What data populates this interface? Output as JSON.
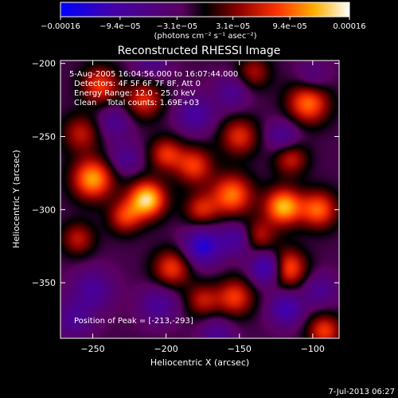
{
  "chart_data": {
    "type": "heatmap",
    "title": "Reconstructed RHESSI Image",
    "xlabel": "Heliocentric X (arcsec)",
    "ylabel": "Heliocentric Y (arcsec)",
    "xlim": [
      -272,
      -82
    ],
    "ylim": [
      -388,
      -198
    ],
    "xticks": [
      -250,
      -200,
      -150,
      -100
    ],
    "yticks": [
      -200,
      -250,
      -300,
      -350
    ],
    "colorbar": {
      "unit_label": "(photons cm⁻² s⁻¹ asec⁻²)",
      "range": [
        -0.00016,
        0.00016
      ],
      "tick_labels": [
        "-0.00016",
        "-9.4e-05",
        "-3.1e-05",
        "3.1e-05",
        "9.4e-05",
        "0.00016"
      ],
      "tick_values": [
        -0.00016,
        -9.4e-05,
        -3.1e-05,
        3.1e-05,
        9.4e-05,
        0.00016
      ]
    },
    "annotations": [
      "5-Aug-2005 16:04:56.000 to 16:07:44.000",
      "Detectors: 4F 5F 6F 7F 8F, Att 0",
      "Energy Range: 12.0 - 25.0 keV",
      "Clean    Total counts: 1.69E+03"
    ],
    "peak_label": "Position of Peak = [-213,-293]",
    "peak": [
      -213,
      -293
    ],
    "sources": [
      {
        "x": -213,
        "y": -293,
        "amp": 1.0,
        "sigma": 9
      },
      {
        "x": -250,
        "y": -279,
        "amp": 0.85,
        "sigma": 10
      },
      {
        "x": -228,
        "y": -305,
        "amp": 0.55,
        "sigma": 8
      },
      {
        "x": -120,
        "y": -298,
        "amp": 0.9,
        "sigma": 9
      },
      {
        "x": -118,
        "y": -340,
        "amp": 0.8,
        "sigma": 9
      },
      {
        "x": -96,
        "y": -300,
        "amp": 0.7,
        "sigma": 9
      },
      {
        "x": -103,
        "y": -227,
        "amp": 0.75,
        "sigma": 10
      },
      {
        "x": -155,
        "y": -290,
        "amp": 0.75,
        "sigma": 10
      },
      {
        "x": -150,
        "y": -250,
        "amp": 0.55,
        "sigma": 9
      },
      {
        "x": -181,
        "y": -270,
        "amp": 0.6,
        "sigma": 9
      },
      {
        "x": -200,
        "y": -262,
        "amp": 0.55,
        "sigma": 8
      },
      {
        "x": -176,
        "y": -300,
        "amp": 0.5,
        "sigma": 8
      },
      {
        "x": -215,
        "y": -225,
        "amp": 0.55,
        "sigma": 9
      },
      {
        "x": -245,
        "y": -215,
        "amp": 0.6,
        "sigma": 9
      },
      {
        "x": -258,
        "y": -248,
        "amp": 0.45,
        "sigma": 9
      },
      {
        "x": -196,
        "y": -340,
        "amp": 0.6,
        "sigma": 9
      },
      {
        "x": -175,
        "y": -362,
        "amp": 0.45,
        "sigma": 8
      },
      {
        "x": -153,
        "y": -360,
        "amp": 0.6,
        "sigma": 9
      },
      {
        "x": -260,
        "y": -320,
        "amp": 0.45,
        "sigma": 8
      },
      {
        "x": -92,
        "y": -383,
        "amp": 0.6,
        "sigma": 8
      },
      {
        "x": -140,
        "y": -206,
        "amp": 0.4,
        "sigma": 8
      },
      {
        "x": -115,
        "y": -265,
        "amp": 0.5,
        "sigma": 8
      },
      {
        "x": -137,
        "y": -318,
        "amp": 0.45,
        "sigma": 8
      },
      {
        "x": -180,
        "y": -235,
        "amp": -0.45,
        "sigma": 9
      },
      {
        "x": -155,
        "y": -220,
        "amp": -0.35,
        "sigma": 8
      },
      {
        "x": -120,
        "y": -250,
        "amp": -0.4,
        "sigma": 8
      },
      {
        "x": -175,
        "y": -325,
        "amp": -0.7,
        "sigma": 9
      },
      {
        "x": -152,
        "y": -320,
        "amp": -0.45,
        "sigma": 8
      },
      {
        "x": -205,
        "y": -365,
        "amp": -0.4,
        "sigma": 9
      },
      {
        "x": -130,
        "y": -340,
        "amp": -0.8,
        "sigma": 8
      },
      {
        "x": -118,
        "y": -368,
        "amp": -0.55,
        "sigma": 8
      },
      {
        "x": -250,
        "y": -355,
        "amp": -0.4,
        "sigma": 10
      },
      {
        "x": -263,
        "y": -375,
        "amp": -0.35,
        "sigma": 9
      },
      {
        "x": -228,
        "y": -265,
        "amp": -0.35,
        "sigma": 8
      },
      {
        "x": -235,
        "y": -240,
        "amp": -0.35,
        "sigma": 8
      },
      {
        "x": -210,
        "y": -198,
        "amp": -0.3,
        "sigma": 9
      },
      {
        "x": -100,
        "y": -210,
        "amp": -0.3,
        "sigma": 8
      },
      {
        "x": -95,
        "y": -355,
        "amp": -0.35,
        "sigma": 8
      },
      {
        "x": -165,
        "y": -385,
        "amp": -0.35,
        "sigma": 8
      }
    ],
    "background": -0.12,
    "grid": false,
    "legend": "none"
  },
  "footer": {
    "timestamp": "7-Jul-2013 06:27"
  }
}
